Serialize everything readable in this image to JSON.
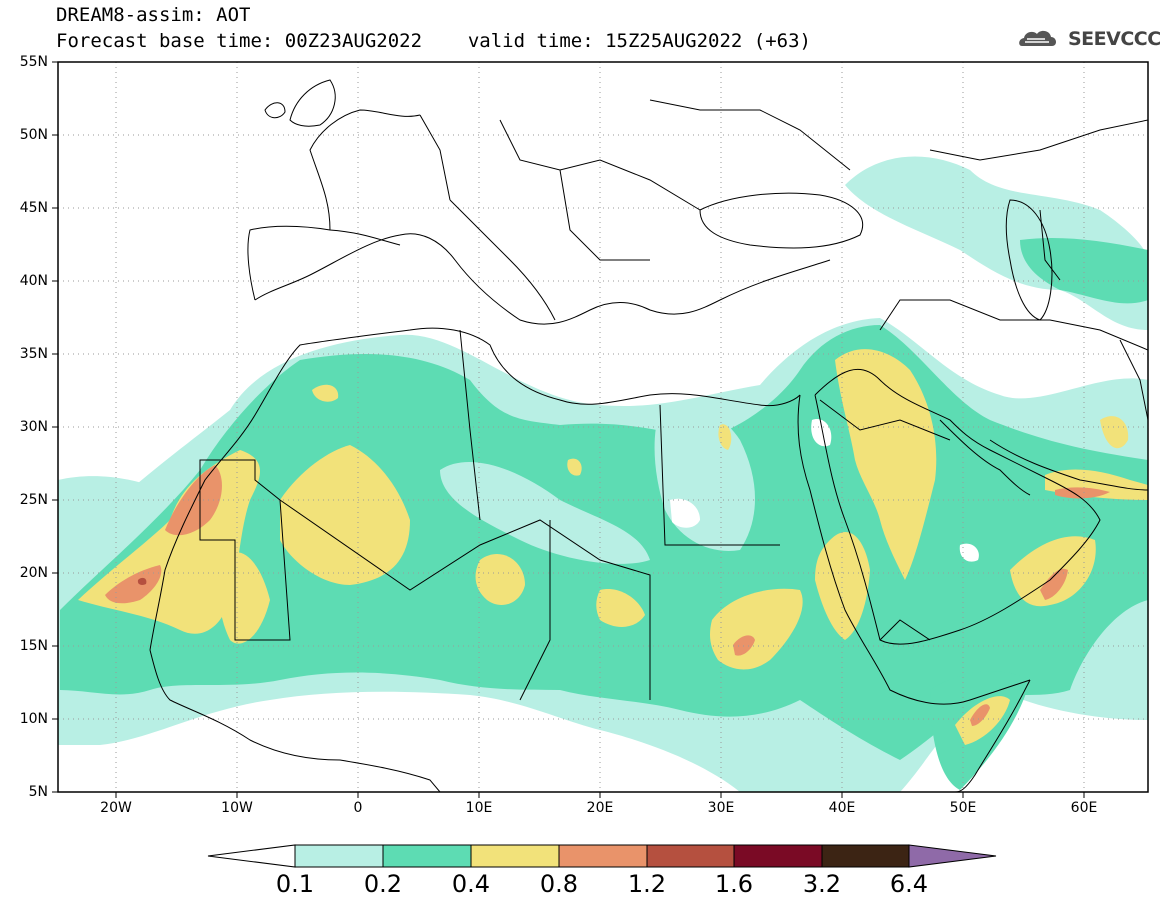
{
  "header": {
    "title": "DREAM8-assim: AOT",
    "base_time_label": "Forecast base time: 00Z23AUG2022",
    "valid_time_label": "valid time: 15Z25AUG2022 (+63)",
    "logo_text": "SEEVCCC"
  },
  "map": {
    "projection": "cylindrical lat/lon",
    "extent": {
      "lon_min": -25,
      "lon_max": 65,
      "lat_min": 5,
      "lat_max": 55
    },
    "lat_ticks": [
      "55N",
      "50N",
      "45N",
      "40N",
      "35N",
      "30N",
      "25N",
      "20N",
      "15N",
      "10N",
      "5N"
    ],
    "lon_ticks": [
      "20W",
      "10W",
      "0",
      "10E",
      "20E",
      "30E",
      "40E",
      "50E",
      "60E"
    ],
    "gridlines": "dotted"
  },
  "legend": {
    "levels": [
      "0.1",
      "0.2",
      "0.4",
      "0.8",
      "1.2",
      "1.6",
      "3.2",
      "6.4"
    ],
    "colors": [
      "#b8efe4",
      "#5ddcb3",
      "#f2e27a",
      "#e9936a",
      "#b5503f",
      "#7a0a25",
      "#3c2414",
      "#8f6aa8"
    ]
  }
}
